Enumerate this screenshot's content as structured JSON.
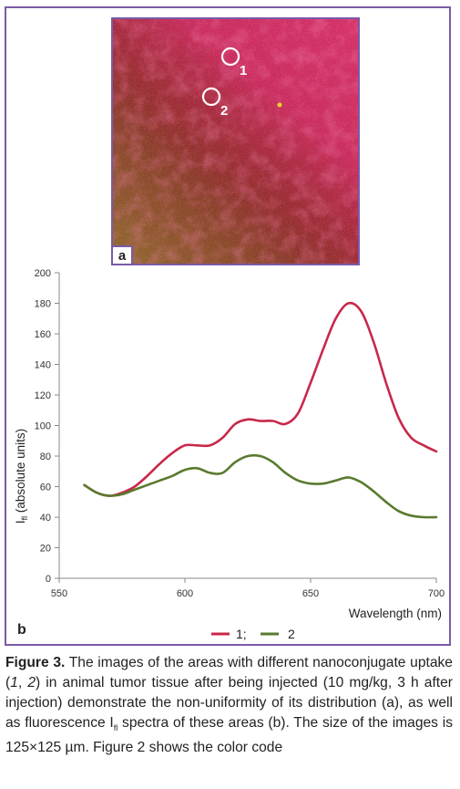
{
  "panel_a": {
    "label": "a",
    "markers": [
      {
        "id": "1",
        "label": "1"
      },
      {
        "id": "2",
        "label": "2"
      }
    ]
  },
  "panel_b": {
    "label": "b"
  },
  "chart_data": {
    "type": "line",
    "title": "",
    "xlabel": "Wavelength (nm)",
    "ylabel_main": "I",
    "ylabel_sub": "fl",
    "ylabel_rest": " (absolute units)",
    "xlim": [
      550,
      700
    ],
    "ylim": [
      0,
      200
    ],
    "x_ticks": [
      550,
      600,
      650,
      700
    ],
    "y_ticks": [
      0,
      20,
      40,
      60,
      80,
      100,
      120,
      140,
      160,
      180,
      200
    ],
    "grid": false,
    "legend_position": "bottom-center",
    "x": [
      560,
      565,
      570,
      575,
      580,
      585,
      590,
      595,
      600,
      605,
      610,
      615,
      620,
      625,
      630,
      635,
      640,
      645,
      650,
      655,
      660,
      665,
      670,
      675,
      680,
      685,
      690,
      695,
      700
    ],
    "series": [
      {
        "name": "1;",
        "color": "#c8284a",
        "values": [
          61,
          56,
          54,
          56,
          60,
          67,
          75,
          82,
          87,
          87,
          87,
          92,
          101,
          104,
          103,
          103,
          101,
          108,
          128,
          150,
          170,
          180,
          175,
          155,
          128,
          105,
          92,
          87,
          83
        ]
      },
      {
        "name": "2",
        "color": "#5a7a2f",
        "values": [
          61,
          56,
          54,
          55,
          58,
          61,
          64,
          67,
          71,
          72,
          69,
          69,
          76,
          80,
          80,
          76,
          69,
          64,
          62,
          62,
          64,
          66,
          63,
          57,
          50,
          44,
          41,
          40,
          40
        ]
      }
    ]
  },
  "caption": {
    "lead": "Figure 3.",
    "p1": " The images of the areas with different nanoconjugate uptake (",
    "i1": "1",
    "p2": ", ",
    "i2": "2",
    "p3": ") in animal tumor tissue after being injected (10 mg/kg, 3 h after injection) demonstrate the non-uniformity of its distribution (a), as well as fluorescence I",
    "sub": "fl",
    "p4": " spectra of these areas (b). The size of the images is 125×125 µm. Figure 2 shows the color code"
  },
  "colors": {
    "frame": "#7b5aa6",
    "series1": "#c8284a",
    "series2": "#5a7a2f",
    "tissue_magenta": "#d8306e",
    "tissue_red": "#8a2a2c",
    "tissue_green": "#9aa63a"
  }
}
